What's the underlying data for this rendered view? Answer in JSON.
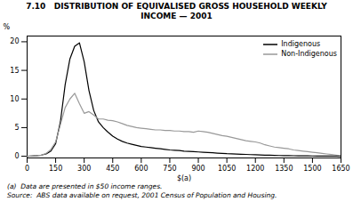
{
  "chart_data": {
    "type": "line",
    "title": "7.10   DISTRIBUTION OF EQUIVALISED GROSS HOUSEHOLD WEEKLY\nINCOME — 2001",
    "xlabel": "$(a)",
    "ylabel": "%",
    "annotations": [
      "(a)  Data are presented in $50 income ranges.",
      "Source:  ABS data available on request, 2001 Census of Population and Housing."
    ],
    "legend": "upper right",
    "xlim": [
      0,
      1650
    ],
    "ylim": [
      -0.3,
      21
    ],
    "xticks": [
      0,
      150,
      300,
      450,
      600,
      750,
      900,
      1050,
      1200,
      1350,
      1500,
      1650
    ],
    "yticks": [
      0,
      5,
      10,
      15,
      20
    ],
    "x": [
      0,
      25,
      50,
      75,
      100,
      125,
      150,
      175,
      200,
      225,
      250,
      275,
      300,
      325,
      350,
      375,
      400,
      425,
      450,
      475,
      500,
      525,
      550,
      575,
      600,
      625,
      650,
      675,
      700,
      725,
      750,
      775,
      800,
      825,
      850,
      875,
      900,
      925,
      950,
      975,
      1000,
      1025,
      1050,
      1075,
      1100,
      1125,
      1150,
      1175,
      1200,
      1225,
      1250,
      1275,
      1300,
      1325,
      1350,
      1375,
      1400,
      1425,
      1450,
      1475,
      1500,
      1525,
      1550,
      1575,
      1600,
      1625,
      1650
    ],
    "series": [
      {
        "name": "Indigenous",
        "color": "#000000",
        "values": [
          0.0,
          0.05,
          0.1,
          0.2,
          0.4,
          0.9,
          2.2,
          6.0,
          12.5,
          17.0,
          19.2,
          19.8,
          16.5,
          11.5,
          8.0,
          6.0,
          5.0,
          4.2,
          3.5,
          3.0,
          2.6,
          2.3,
          2.1,
          1.9,
          1.7,
          1.6,
          1.5,
          1.4,
          1.3,
          1.2,
          1.1,
          1.05,
          1.0,
          0.9,
          0.85,
          0.8,
          0.75,
          0.7,
          0.65,
          0.6,
          0.55,
          0.5,
          0.45,
          0.42,
          0.38,
          0.35,
          0.32,
          0.28,
          0.25,
          0.22,
          0.2,
          0.18,
          0.15,
          0.13,
          0.11,
          0.1,
          0.09,
          0.08,
          0.07,
          0.06,
          0.05,
          0.04,
          0.03,
          0.02,
          0.02,
          0.01,
          0.0
        ]
      },
      {
        "name": "Non-Indigenous",
        "color": "#999999",
        "values": [
          0.0,
          0.05,
          0.1,
          0.2,
          0.5,
          1.2,
          2.5,
          5.5,
          8.5,
          10.0,
          11.0,
          9.2,
          7.5,
          7.8,
          7.2,
          6.5,
          6.5,
          6.3,
          6.2,
          6.0,
          5.7,
          5.4,
          5.2,
          5.0,
          4.9,
          4.8,
          4.7,
          4.6,
          4.6,
          4.5,
          4.5,
          4.4,
          4.4,
          4.3,
          4.3,
          4.2,
          4.4,
          4.3,
          4.2,
          4.0,
          3.8,
          3.6,
          3.5,
          3.3,
          3.1,
          2.9,
          2.7,
          2.6,
          2.5,
          2.3,
          2.0,
          1.8,
          1.6,
          1.5,
          1.4,
          1.3,
          1.1,
          1.0,
          0.9,
          0.8,
          0.7,
          0.6,
          0.5,
          0.4,
          0.3,
          0.2,
          0.1
        ]
      }
    ]
  }
}
